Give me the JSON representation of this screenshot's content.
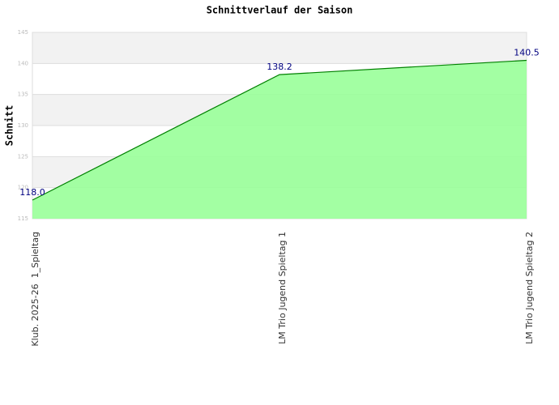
{
  "chart_data": {
    "type": "area",
    "title": "Schnittverlauf der Saison",
    "y_label": "Schnitt",
    "categories": [
      "Klub. 2025-26  1_Spieltag",
      "LM Trio Jugend Spieltag 1",
      "LM Trio Jugend Spieltag 2"
    ],
    "values": [
      118.0,
      138.2,
      140.5
    ],
    "value_labels": [
      "118.0",
      "138.2",
      "140.5"
    ],
    "color": "#99ff99",
    "line_color": "#008000",
    "ylim": [
      115,
      145
    ],
    "yticks": [
      115,
      120,
      125,
      130,
      135,
      140,
      145
    ],
    "grid": true
  }
}
